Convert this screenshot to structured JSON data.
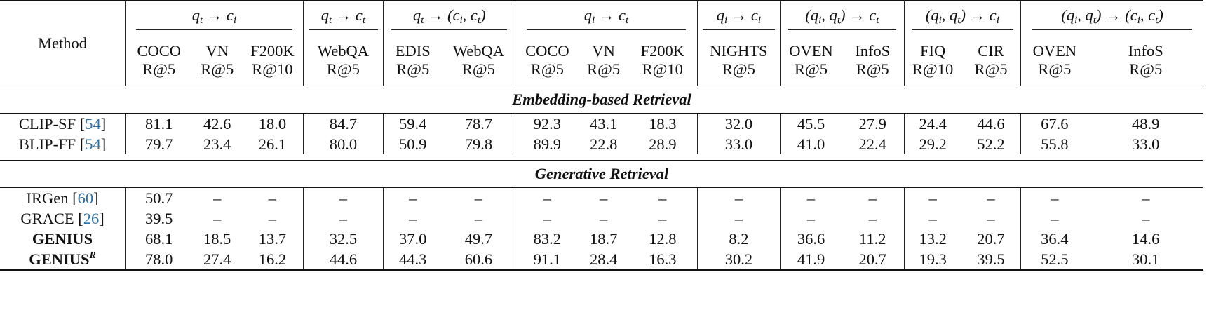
{
  "method_header": "Method",
  "task_groups": [
    {
      "src": [
        "t"
      ],
      "dst": [
        "i"
      ],
      "span": 3
    },
    {
      "src": [
        "t"
      ],
      "dst": [
        "t"
      ],
      "span": 1
    },
    {
      "src": [
        "t"
      ],
      "dst": [
        "i",
        "t"
      ],
      "span": 2
    },
    {
      "src": [
        "i"
      ],
      "dst": [
        "t"
      ],
      "span": 3
    },
    {
      "src": [
        "i"
      ],
      "dst": [
        "i"
      ],
      "span": 1
    },
    {
      "src": [
        "i",
        "t"
      ],
      "dst": [
        "t"
      ],
      "span": 2
    },
    {
      "src": [
        "i",
        "t"
      ],
      "dst": [
        "i"
      ],
      "span": 2
    },
    {
      "src": [
        "i",
        "t"
      ],
      "dst": [
        "i",
        "t"
      ],
      "span": 2
    }
  ],
  "columns": [
    {
      "dataset": "COCO",
      "metric": "R@5"
    },
    {
      "dataset": "VN",
      "metric": "R@5"
    },
    {
      "dataset": "F200K",
      "metric": "R@10"
    },
    {
      "dataset": "WebQA",
      "metric": "R@5"
    },
    {
      "dataset": "EDIS",
      "metric": "R@5"
    },
    {
      "dataset": "WebQA",
      "metric": "R@5"
    },
    {
      "dataset": "COCO",
      "metric": "R@5"
    },
    {
      "dataset": "VN",
      "metric": "R@5"
    },
    {
      "dataset": "F200K",
      "metric": "R@10"
    },
    {
      "dataset": "NIGHTS",
      "metric": "R@5"
    },
    {
      "dataset": "OVEN",
      "metric": "R@5"
    },
    {
      "dataset": "InfoS",
      "metric": "R@5"
    },
    {
      "dataset": "FIQ",
      "metric": "R@10"
    },
    {
      "dataset": "CIR",
      "metric": "R@5"
    },
    {
      "dataset": "OVEN",
      "metric": "R@5"
    },
    {
      "dataset": "InfoS",
      "metric": "R@5"
    }
  ],
  "sections": [
    {
      "title": "Embedding-based Retrieval",
      "rows": [
        {
          "name": "CLIP-SF",
          "cite": "54",
          "bold_name": false,
          "sup": "",
          "values": [
            "81.1",
            "42.6",
            "18.0",
            "84.7",
            "59.4",
            "78.7",
            "92.3",
            "43.1",
            "18.3",
            "32.0",
            "45.5",
            "27.9",
            "24.4",
            "44.6",
            "67.6",
            "48.9"
          ],
          "bold": [
            true,
            true,
            false,
            true,
            true,
            false,
            true,
            true,
            false,
            false,
            true,
            true,
            false,
            false,
            true,
            true
          ]
        },
        {
          "name": "BLIP-FF",
          "cite": "54",
          "bold_name": false,
          "sup": "",
          "values": [
            "79.7",
            "23.4",
            "26.1",
            "80.0",
            "50.9",
            "79.8",
            "89.9",
            "22.8",
            "28.9",
            "33.0",
            "41.0",
            "22.4",
            "29.2",
            "52.2",
            "55.8",
            "33.0"
          ],
          "bold": [
            false,
            false,
            true,
            false,
            false,
            true,
            false,
            false,
            true,
            true,
            false,
            false,
            true,
            true,
            false,
            false
          ]
        }
      ]
    },
    {
      "title": "Generative Retrieval",
      "rows": [
        {
          "name": "IRGen",
          "cite": "60",
          "bold_name": false,
          "sup": "",
          "values": [
            "50.7",
            "–",
            "–",
            "–",
            "–",
            "–",
            "–",
            "–",
            "–",
            "–",
            "–",
            "–",
            "–",
            "–",
            "–",
            "–"
          ],
          "bold": [
            false,
            false,
            false,
            false,
            false,
            false,
            false,
            false,
            false,
            false,
            false,
            false,
            false,
            false,
            false,
            false
          ]
        },
        {
          "name": "GRACE",
          "cite": "26",
          "bold_name": false,
          "sup": "",
          "values": [
            "39.5",
            "–",
            "–",
            "–",
            "–",
            "–",
            "–",
            "–",
            "–",
            "–",
            "–",
            "–",
            "–",
            "–",
            "–",
            "–"
          ],
          "bold": [
            false,
            false,
            false,
            false,
            false,
            false,
            false,
            false,
            false,
            false,
            false,
            false,
            false,
            false,
            false,
            false
          ]
        },
        {
          "name": "GENIUS",
          "cite": "",
          "bold_name": true,
          "sup": "",
          "values": [
            "68.1",
            "18.5",
            "13.7",
            "32.5",
            "37.0",
            "49.7",
            "83.2",
            "18.7",
            "12.8",
            "8.2",
            "36.6",
            "11.2",
            "13.2",
            "20.7",
            "36.4",
            "14.6"
          ],
          "bold": [
            false,
            false,
            false,
            false,
            false,
            false,
            false,
            false,
            false,
            false,
            false,
            false,
            false,
            false,
            false,
            false
          ]
        },
        {
          "name": "GENIUS",
          "cite": "",
          "bold_name": true,
          "sup": "R",
          "values": [
            "78.0",
            "27.4",
            "16.2",
            "44.6",
            "44.3",
            "60.6",
            "91.1",
            "28.4",
            "16.3",
            "30.2",
            "41.9",
            "20.7",
            "19.3",
            "39.5",
            "52.5",
            "30.1"
          ],
          "bold": [
            true,
            true,
            true,
            true,
            true,
            true,
            true,
            true,
            true,
            true,
            true,
            true,
            true,
            true,
            true,
            true
          ]
        }
      ]
    }
  ]
}
